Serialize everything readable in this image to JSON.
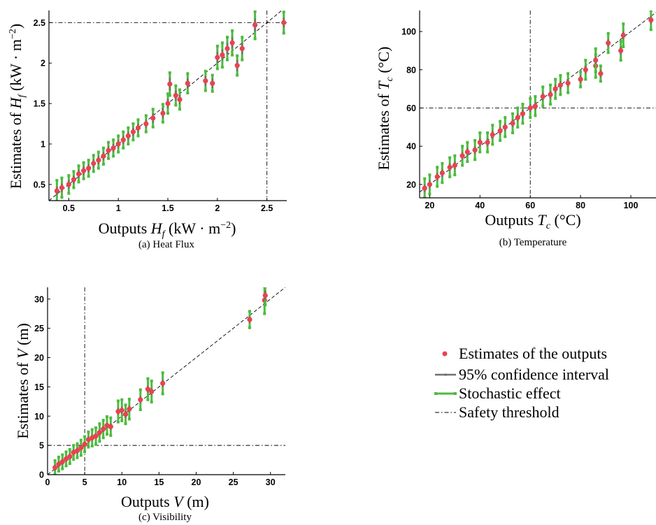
{
  "colors": {
    "estimate": "#e8434f",
    "ci": "#707070",
    "stochastic": "#4dbb3e",
    "threshold": "#000000",
    "diagonal": "#000000"
  },
  "legend": {
    "items": [
      {
        "label": "Estimates of the outputs",
        "kind": "estimate"
      },
      {
        "label": "95% confidence interval",
        "kind": "ci"
      },
      {
        "label": "Stochastic effect",
        "kind": "stochastic"
      },
      {
        "label": "Safety threshold",
        "kind": "threshold"
      }
    ]
  },
  "chart_data": [
    {
      "id": "heat-flux",
      "type": "scatter",
      "caption": "(a) Heat Flux",
      "xlabel": "Outputs H_f (kW · m^−2)",
      "ylabel": "Estimates of H_f (kW · m^−2)",
      "xlim": [
        0.3,
        2.7
      ],
      "ylim": [
        0.3,
        2.65
      ],
      "xticks": [
        {
          "v": 0.5,
          "t": "0.5"
        },
        {
          "v": 1,
          "t": "1"
        },
        {
          "v": 1.5,
          "t": "1.5"
        },
        {
          "v": 2,
          "t": "2"
        },
        {
          "v": 2.5,
          "t": "2.5"
        }
      ],
      "yticks": [
        {
          "v": 0.5,
          "t": "0.5"
        },
        {
          "v": 1,
          "t": "1"
        },
        {
          "v": 1.5,
          "t": "1.5"
        },
        {
          "v": 2,
          "t": "2"
        },
        {
          "v": 2.5,
          "t": "2.5"
        }
      ],
      "threshold": {
        "x": 2.5,
        "y": 2.5
      },
      "points": [
        {
          "x": 0.38,
          "y": 0.42,
          "ci": 0.05,
          "se": 0.13
        },
        {
          "x": 0.43,
          "y": 0.46,
          "ci": 0.05,
          "se": 0.12
        },
        {
          "x": 0.5,
          "y": 0.5,
          "ci": 0.05,
          "se": 0.11
        },
        {
          "x": 0.55,
          "y": 0.56,
          "ci": 0.05,
          "se": 0.1
        },
        {
          "x": 0.6,
          "y": 0.63,
          "ci": 0.05,
          "se": 0.1
        },
        {
          "x": 0.65,
          "y": 0.67,
          "ci": 0.05,
          "se": 0.1
        },
        {
          "x": 0.7,
          "y": 0.7,
          "ci": 0.05,
          "se": 0.1
        },
        {
          "x": 0.75,
          "y": 0.76,
          "ci": 0.05,
          "se": 0.1
        },
        {
          "x": 0.8,
          "y": 0.8,
          "ci": 0.05,
          "se": 0.1
        },
        {
          "x": 0.85,
          "y": 0.85,
          "ci": 0.05,
          "se": 0.1
        },
        {
          "x": 0.9,
          "y": 0.92,
          "ci": 0.05,
          "se": 0.1
        },
        {
          "x": 0.95,
          "y": 0.95,
          "ci": 0.05,
          "se": 0.1
        },
        {
          "x": 1.0,
          "y": 1.0,
          "ci": 0.05,
          "se": 0.1
        },
        {
          "x": 1.05,
          "y": 1.05,
          "ci": 0.05,
          "se": 0.1
        },
        {
          "x": 1.1,
          "y": 1.1,
          "ci": 0.05,
          "se": 0.1
        },
        {
          "x": 1.15,
          "y": 1.15,
          "ci": 0.05,
          "se": 0.1
        },
        {
          "x": 1.2,
          "y": 1.2,
          "ci": 0.05,
          "se": 0.1
        },
        {
          "x": 1.28,
          "y": 1.25,
          "ci": 0.05,
          "se": 0.1
        },
        {
          "x": 1.35,
          "y": 1.32,
          "ci": 0.06,
          "se": 0.11
        },
        {
          "x": 1.45,
          "y": 1.38,
          "ci": 0.06,
          "se": 0.11
        },
        {
          "x": 1.5,
          "y": 1.5,
          "ci": 0.06,
          "se": 0.12
        },
        {
          "x": 1.52,
          "y": 1.74,
          "ci": 0.08,
          "se": 0.14
        },
        {
          "x": 1.58,
          "y": 1.6,
          "ci": 0.06,
          "se": 0.12
        },
        {
          "x": 1.62,
          "y": 1.55,
          "ci": 0.06,
          "se": 0.12
        },
        {
          "x": 1.7,
          "y": 1.75,
          "ci": 0.06,
          "se": 0.12
        },
        {
          "x": 1.88,
          "y": 1.78,
          "ci": 0.06,
          "se": 0.12
        },
        {
          "x": 1.95,
          "y": 1.75,
          "ci": 0.06,
          "se": 0.1
        },
        {
          "x": 2.0,
          "y": 2.07,
          "ci": 0.07,
          "se": 0.14
        },
        {
          "x": 2.05,
          "y": 2.1,
          "ci": 0.07,
          "se": 0.15
        },
        {
          "x": 2.1,
          "y": 2.18,
          "ci": 0.07,
          "se": 0.14
        },
        {
          "x": 2.15,
          "y": 2.25,
          "ci": 0.07,
          "se": 0.15
        },
        {
          "x": 2.2,
          "y": 1.97,
          "ci": 0.07,
          "se": 0.12
        },
        {
          "x": 2.25,
          "y": 2.18,
          "ci": 0.07,
          "se": 0.14
        },
        {
          "x": 2.38,
          "y": 2.47,
          "ci": 0.08,
          "se": 0.17
        },
        {
          "x": 2.67,
          "y": 2.5,
          "ci": 0.06,
          "se": 0.13
        }
      ]
    },
    {
      "id": "temperature",
      "type": "scatter",
      "caption": "(b) Temperature",
      "xlabel": "Outputs T_c (°C)",
      "ylabel": "Estimates of T_c (°C)",
      "xlim": [
        16,
        110
      ],
      "ylim": [
        13,
        111
      ],
      "xticks": [
        {
          "v": 20,
          "t": "20"
        },
        {
          "v": 40,
          "t": "40"
        },
        {
          "v": 60,
          "t": "60"
        },
        {
          "v": 80,
          "t": "80"
        },
        {
          "v": 100,
          "t": "100"
        }
      ],
      "yticks": [
        {
          "v": 20,
          "t": "20"
        },
        {
          "v": 40,
          "t": "40"
        },
        {
          "v": 60,
          "t": "60"
        },
        {
          "v": 80,
          "t": "80"
        },
        {
          "v": 100,
          "t": "100"
        }
      ],
      "threshold": {
        "x": 60,
        "y": 60
      },
      "points": [
        {
          "x": 18,
          "y": 18,
          "ci": 2,
          "se": 5
        },
        {
          "x": 20,
          "y": 20,
          "ci": 2,
          "se": 5
        },
        {
          "x": 23,
          "y": 24,
          "ci": 2,
          "se": 5
        },
        {
          "x": 25,
          "y": 26,
          "ci": 2,
          "se": 5
        },
        {
          "x": 28,
          "y": 29,
          "ci": 2,
          "se": 5
        },
        {
          "x": 30,
          "y": 30,
          "ci": 2,
          "se": 5
        },
        {
          "x": 33,
          "y": 35,
          "ci": 2,
          "se": 5
        },
        {
          "x": 35,
          "y": 37,
          "ci": 2,
          "se": 5
        },
        {
          "x": 38,
          "y": 38,
          "ci": 2,
          "se": 5
        },
        {
          "x": 40,
          "y": 42,
          "ci": 2,
          "se": 5
        },
        {
          "x": 43,
          "y": 42,
          "ci": 2,
          "se": 5
        },
        {
          "x": 45,
          "y": 46,
          "ci": 2,
          "se": 5
        },
        {
          "x": 48,
          "y": 48,
          "ci": 2,
          "se": 5
        },
        {
          "x": 50,
          "y": 50,
          "ci": 2,
          "se": 5
        },
        {
          "x": 53,
          "y": 52,
          "ci": 2,
          "se": 5
        },
        {
          "x": 55,
          "y": 55,
          "ci": 2,
          "se": 5
        },
        {
          "x": 57,
          "y": 57,
          "ci": 2,
          "se": 5
        },
        {
          "x": 60,
          "y": 60,
          "ci": 2,
          "se": 5
        },
        {
          "x": 62,
          "y": 61,
          "ci": 2,
          "se": 5
        },
        {
          "x": 65,
          "y": 66,
          "ci": 2,
          "se": 5
        },
        {
          "x": 68,
          "y": 67,
          "ci": 2,
          "se": 5
        },
        {
          "x": 70,
          "y": 70,
          "ci": 2,
          "se": 5
        },
        {
          "x": 72,
          "y": 72,
          "ci": 2,
          "se": 5
        },
        {
          "x": 75,
          "y": 73,
          "ci": 2,
          "se": 5
        },
        {
          "x": 80,
          "y": 75,
          "ci": 2,
          "se": 4
        },
        {
          "x": 82,
          "y": 80,
          "ci": 2,
          "se": 5
        },
        {
          "x": 86,
          "y": 82,
          "ci": 2,
          "se": 6
        },
        {
          "x": 86,
          "y": 85,
          "ci": 2,
          "se": 6
        },
        {
          "x": 88,
          "y": 78,
          "ci": 2,
          "se": 4
        },
        {
          "x": 91,
          "y": 94,
          "ci": 2,
          "se": 5
        },
        {
          "x": 96,
          "y": 90,
          "ci": 2,
          "se": 5
        },
        {
          "x": 97,
          "y": 98,
          "ci": 2,
          "se": 6
        },
        {
          "x": 108,
          "y": 106,
          "ci": 2,
          "se": 5
        }
      ]
    },
    {
      "id": "visibility",
      "type": "scatter",
      "caption": "(c) Visibility",
      "xlabel": "Outputs V (m)",
      "ylabel": "Estimates of V (m)",
      "xlim": [
        0,
        32
      ],
      "ylim": [
        0,
        32
      ],
      "xticks": [
        {
          "v": 0,
          "t": "0"
        },
        {
          "v": 5,
          "t": "5"
        },
        {
          "v": 10,
          "t": "10"
        },
        {
          "v": 15,
          "t": "15"
        },
        {
          "v": 20,
          "t": "20"
        },
        {
          "v": 25,
          "t": "25"
        },
        {
          "v": 30,
          "t": "30"
        }
      ],
      "yticks": [
        {
          "v": 0,
          "t": "0"
        },
        {
          "v": 5,
          "t": "5"
        },
        {
          "v": 10,
          "t": "10"
        },
        {
          "v": 15,
          "t": "15"
        },
        {
          "v": 20,
          "t": "20"
        },
        {
          "v": 25,
          "t": "25"
        },
        {
          "v": 30,
          "t": "30"
        }
      ],
      "threshold": {
        "x": 5,
        "y": 5
      },
      "points": [
        {
          "x": 1,
          "y": 1.2,
          "ci": 0.5,
          "se": 1.2
        },
        {
          "x": 1.5,
          "y": 1.8,
          "ci": 0.5,
          "se": 1.2
        },
        {
          "x": 2,
          "y": 2.2,
          "ci": 0.5,
          "se": 1.2
        },
        {
          "x": 2.5,
          "y": 2.7,
          "ci": 0.5,
          "se": 1.2
        },
        {
          "x": 3,
          "y": 3.1,
          "ci": 0.5,
          "se": 1.2
        },
        {
          "x": 3.5,
          "y": 3.8,
          "ci": 0.5,
          "se": 1.2
        },
        {
          "x": 4,
          "y": 4.1,
          "ci": 0.5,
          "se": 1.2
        },
        {
          "x": 4.5,
          "y": 4.6,
          "ci": 0.5,
          "se": 1.3
        },
        {
          "x": 5,
          "y": 5.2,
          "ci": 0.5,
          "se": 1.3
        },
        {
          "x": 5.5,
          "y": 6.0,
          "ci": 0.5,
          "se": 1.3
        },
        {
          "x": 6,
          "y": 6.3,
          "ci": 0.5,
          "se": 1.4
        },
        {
          "x": 6.5,
          "y": 6.6,
          "ci": 0.5,
          "se": 1.4
        },
        {
          "x": 7,
          "y": 7.2,
          "ci": 0.5,
          "se": 1.5
        },
        {
          "x": 7.5,
          "y": 7.8,
          "ci": 0.5,
          "se": 1.5
        },
        {
          "x": 8,
          "y": 8.4,
          "ci": 0.5,
          "se": 1.5
        },
        {
          "x": 8.5,
          "y": 8.2,
          "ci": 0.5,
          "se": 1.5
        },
        {
          "x": 9.5,
          "y": 10.8,
          "ci": 0.6,
          "se": 1.8
        },
        {
          "x": 10,
          "y": 11.0,
          "ci": 0.6,
          "se": 1.8
        },
        {
          "x": 10.5,
          "y": 10.3,
          "ci": 0.6,
          "se": 1.6
        },
        {
          "x": 11,
          "y": 11.2,
          "ci": 0.6,
          "se": 1.7
        },
        {
          "x": 12.5,
          "y": 12.8,
          "ci": 0.6,
          "se": 1.7
        },
        {
          "x": 13.5,
          "y": 14.6,
          "ci": 0.6,
          "se": 1.8
        },
        {
          "x": 14,
          "y": 14.2,
          "ci": 0.6,
          "se": 1.8
        },
        {
          "x": 15.5,
          "y": 15.6,
          "ci": 0.6,
          "se": 1.8
        },
        {
          "x": 27.2,
          "y": 26.5,
          "ci": 0.6,
          "se": 1.4
        },
        {
          "x": 29.2,
          "y": 29.8,
          "ci": 0.8,
          "se": 2.3
        },
        {
          "x": 29.3,
          "y": 30.6,
          "ci": 0.8,
          "se": 1.6
        }
      ]
    }
  ]
}
